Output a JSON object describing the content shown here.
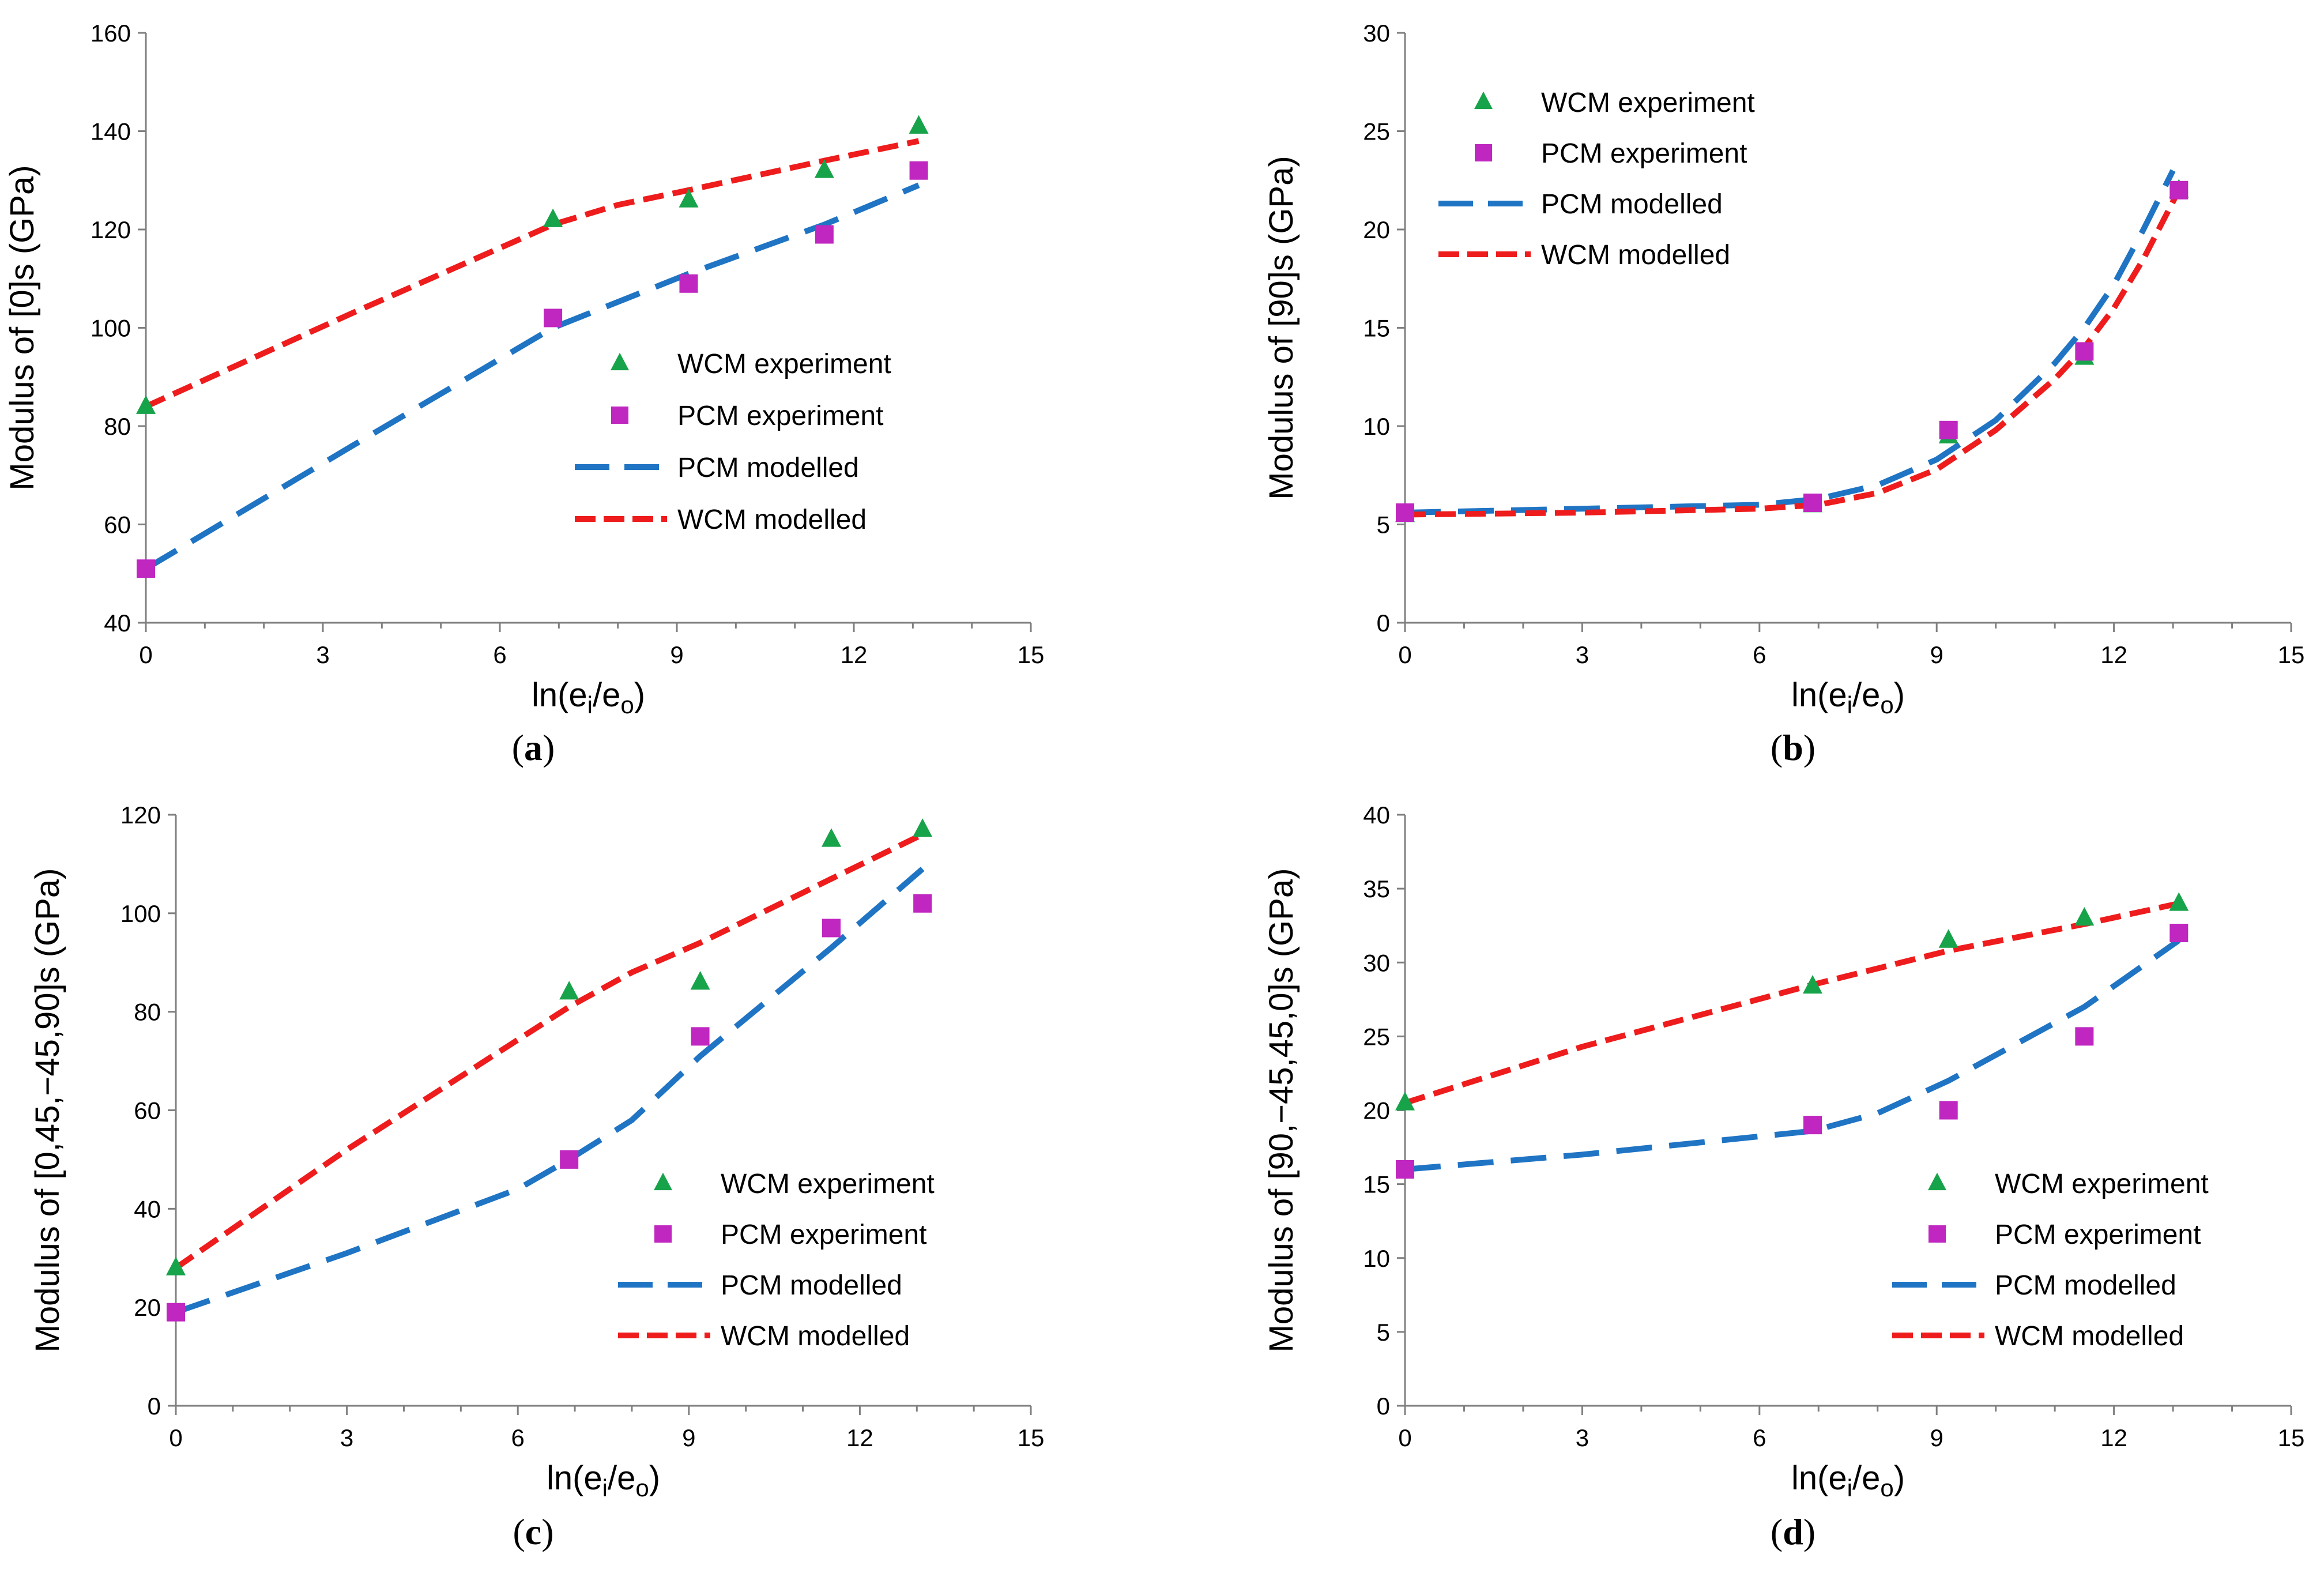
{
  "colors": {
    "wcm_marker": "#17a34a",
    "pcm_marker": "#c026c0",
    "pcm_line": "#1f74c4",
    "wcm_line": "#ee1c1c",
    "axis": "#7f7f7f"
  },
  "chart_data": [
    {
      "type": "scatter",
      "caption": "a",
      "xlabel": "ln(e",
      "xlabel_sub_i": "i",
      "xlabel_mid": "/e",
      "xlabel_sub_o": "o",
      "xlabel_end": ")",
      "ylabel": "Modulus of [0]s (GPa)",
      "xlim": [
        0,
        15
      ],
      "ylim": [
        40,
        160
      ],
      "xticks": [
        0,
        3,
        6,
        9,
        12,
        15
      ],
      "yticks": [
        40,
        60,
        80,
        100,
        120,
        140,
        160
      ],
      "legend_position": "center-right",
      "legend_order": [
        "WCM experiment",
        "PCM experiment",
        "PCM modelled",
        "WCM modelled"
      ],
      "series": [
        {
          "name": "WCM experiment",
          "kind": "triangle",
          "x": [
            0,
            6.9,
            9.2,
            11.5,
            13.1
          ],
          "y": [
            84,
            122,
            126,
            132,
            141
          ]
        },
        {
          "name": "PCM experiment",
          "kind": "square",
          "x": [
            0,
            6.9,
            9.2,
            11.5,
            13.1
          ],
          "y": [
            51,
            102,
            109,
            119,
            132
          ]
        },
        {
          "name": "PCM modelled",
          "kind": "dash-blue",
          "x": [
            0,
            3.5,
            6.9,
            9.2,
            11.5,
            13.1
          ],
          "y": [
            51,
            76,
            100,
            111,
            121,
            129
          ]
        },
        {
          "name": "WCM modelled",
          "kind": "dash-red",
          "x": [
            0,
            3.5,
            6.9,
            8.0,
            9.2,
            11.5,
            13.1
          ],
          "y": [
            84,
            103,
            121,
            125,
            128,
            134,
            138
          ]
        }
      ]
    },
    {
      "type": "scatter",
      "caption": "b",
      "xlabel": "ln(e",
      "xlabel_sub_i": "i",
      "xlabel_mid": "/e",
      "xlabel_sub_o": "o",
      "xlabel_end": ")",
      "ylabel": "Modulus of [90]s (GPa)",
      "xlim": [
        0,
        15
      ],
      "ylim": [
        0,
        30
      ],
      "xticks": [
        0,
        3,
        6,
        9,
        12,
        15
      ],
      "yticks": [
        0,
        5,
        10,
        15,
        20,
        25,
        30
      ],
      "legend_position": "top-center",
      "legend_order": [
        "WCM experiment",
        "PCM experiment",
        "PCM modelled",
        "WCM modelled"
      ],
      "series": [
        {
          "name": "WCM experiment",
          "kind": "triangle",
          "x": [
            0,
            6.9,
            9.2,
            11.5,
            13.1
          ],
          "y": [
            5.5,
            6.0,
            9.5,
            13.5,
            22
          ]
        },
        {
          "name": "PCM experiment",
          "kind": "square",
          "x": [
            0,
            6.9,
            9.2,
            11.5,
            13.1
          ],
          "y": [
            5.6,
            6.1,
            9.8,
            13.8,
            22
          ]
        },
        {
          "name": "PCM modelled",
          "kind": "dash-blue",
          "x": [
            0,
            3,
            6,
            7,
            8,
            9,
            10,
            11,
            11.5,
            12,
            12.5,
            13.0
          ],
          "y": [
            5.6,
            5.8,
            6.0,
            6.3,
            7.0,
            8.3,
            10.3,
            13.2,
            15.0,
            17.2,
            20.0,
            23.0
          ]
        },
        {
          "name": "WCM modelled",
          "kind": "dash-red",
          "x": [
            0,
            3,
            6,
            7,
            8,
            9,
            10,
            11,
            11.5,
            12,
            12.5,
            13.1
          ],
          "y": [
            5.5,
            5.6,
            5.8,
            6.0,
            6.6,
            7.8,
            9.8,
            12.4,
            14.0,
            16.0,
            18.5,
            22.0
          ]
        }
      ]
    },
    {
      "type": "scatter",
      "caption": "c",
      "xlabel": "ln(e",
      "xlabel_sub_i": "i",
      "xlabel_mid": "/e",
      "xlabel_sub_o": "o",
      "xlabel_end": ")",
      "ylabel": "Modulus of [0,45,−45,90]s (GPa)",
      "xlim": [
        0,
        15
      ],
      "ylim": [
        0,
        120
      ],
      "xticks": [
        0,
        3,
        6,
        9,
        12,
        15
      ],
      "yticks": [
        0,
        20,
        40,
        60,
        80,
        100,
        120
      ],
      "legend_position": "bottom-right",
      "legend_order": [
        "WCM experiment",
        "PCM experiment",
        "PCM modelled",
        "WCM modelled"
      ],
      "series": [
        {
          "name": "WCM experiment",
          "kind": "triangle",
          "x": [
            0,
            6.9,
            9.2,
            11.5,
            13.1
          ],
          "y": [
            28,
            84,
            86,
            115,
            117
          ]
        },
        {
          "name": "PCM experiment",
          "kind": "square",
          "x": [
            0,
            6.9,
            9.2,
            11.5,
            13.1
          ],
          "y": [
            19,
            50,
            75,
            97,
            102
          ]
        },
        {
          "name": "PCM modelled",
          "kind": "dash-blue",
          "x": [
            0,
            3,
            6,
            6.9,
            8,
            9.2,
            11.5,
            13.1
          ],
          "y": [
            19,
            31,
            44,
            50,
            58,
            71,
            93,
            109
          ]
        },
        {
          "name": "WCM modelled",
          "kind": "dash-red",
          "x": [
            0,
            3,
            6.9,
            8,
            9.2,
            11.5,
            13.1
          ],
          "y": [
            28,
            52,
            81,
            88,
            94,
            107,
            116
          ]
        }
      ]
    },
    {
      "type": "scatter",
      "caption": "d",
      "xlabel": "ln(e",
      "xlabel_sub_i": "i",
      "xlabel_mid": "/e",
      "xlabel_sub_o": "o",
      "xlabel_end": ")",
      "ylabel": "Modulus of [90,−45,45,0]s (GPa)",
      "xlim": [
        0,
        15
      ],
      "ylim": [
        0,
        40
      ],
      "xticks": [
        0,
        3,
        6,
        9,
        12,
        15
      ],
      "yticks": [
        0,
        5,
        10,
        15,
        20,
        25,
        30,
        35,
        40
      ],
      "legend_position": "bottom-right",
      "legend_order": [
        "WCM experiment",
        "PCM experiment",
        "PCM modelled",
        "WCM modelled"
      ],
      "series": [
        {
          "name": "WCM experiment",
          "kind": "triangle",
          "x": [
            0,
            6.9,
            9.2,
            11.5,
            13.1
          ],
          "y": [
            20.5,
            28.4,
            31.5,
            33,
            34
          ]
        },
        {
          "name": "PCM experiment",
          "kind": "square",
          "x": [
            0,
            6.9,
            9.2,
            11.5,
            13.1
          ],
          "y": [
            16,
            19,
            20,
            25,
            32
          ]
        },
        {
          "name": "PCM modelled",
          "kind": "dash-blue",
          "x": [
            0,
            3,
            6.9,
            8,
            9.2,
            11.5,
            13.1
          ],
          "y": [
            16,
            17,
            18.6,
            19.8,
            22,
            27,
            31.5
          ]
        },
        {
          "name": "WCM modelled",
          "kind": "dash-red",
          "x": [
            0,
            3,
            6.9,
            9.2,
            11.5,
            13.1
          ],
          "y": [
            20.5,
            24.3,
            28.5,
            30.8,
            32.6,
            34
          ]
        }
      ]
    }
  ]
}
